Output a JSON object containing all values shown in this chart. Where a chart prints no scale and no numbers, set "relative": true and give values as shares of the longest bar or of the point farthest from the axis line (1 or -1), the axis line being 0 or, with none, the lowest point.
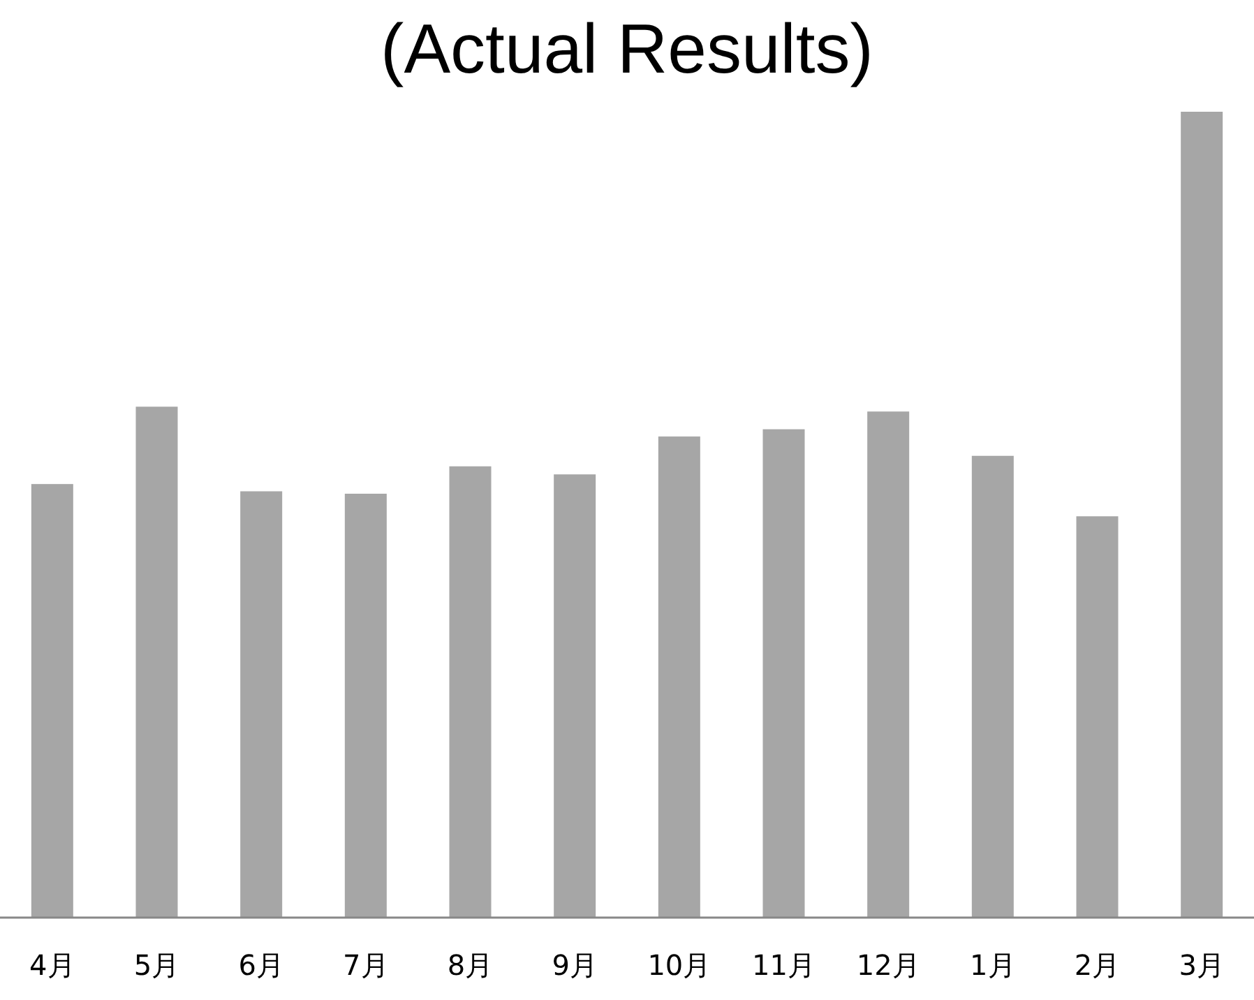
{
  "chart_data": {
    "type": "bar",
    "title": "(Actual Results)",
    "relative": true,
    "color": "#a6a6a6",
    "categories": [
      "4月",
      "5月",
      "6月",
      "7月",
      "8月",
      "9月",
      "10月",
      "11月",
      "12月",
      "1月",
      "2月",
      "3月"
    ],
    "values": [
      0.538,
      0.634,
      0.529,
      0.526,
      0.56,
      0.55,
      0.597,
      0.606,
      0.628,
      0.573,
      0.498,
      1
    ]
  }
}
